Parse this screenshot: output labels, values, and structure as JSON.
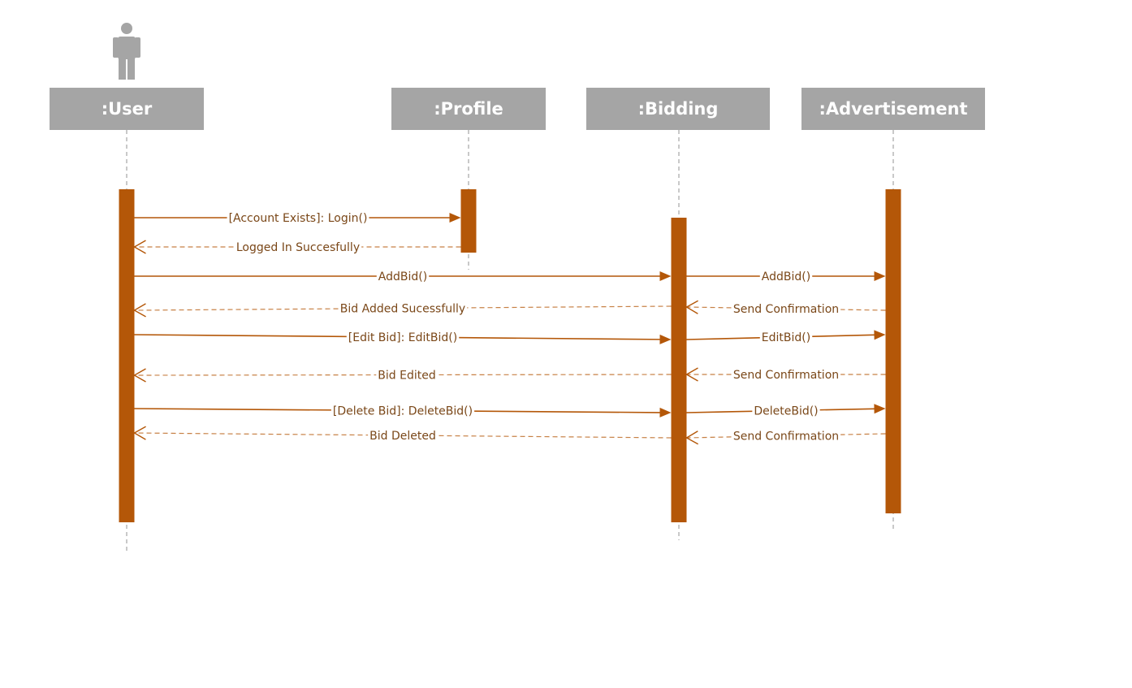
{
  "colors": {
    "header_fill": "#a5a5a5",
    "actor_fill": "#a5a5a5",
    "lifeline": "#a5a5a5",
    "activation": "#b45708",
    "message": "#b45708",
    "label_text": "#7a4718",
    "background": "#ffffff"
  },
  "actor": {
    "icon": "person-icon"
  },
  "objects": [
    {
      "id": "user",
      "label": ":User"
    },
    {
      "id": "profile",
      "label": ":Profile"
    },
    {
      "id": "bidding",
      "label": ":Bidding"
    },
    {
      "id": "advertisement",
      "label": ":Advertisement"
    }
  ],
  "messages": [
    {
      "id": "login",
      "from": "user",
      "to": "profile",
      "type": "sync",
      "label": "[Account Exists]: Login()"
    },
    {
      "id": "logged-in",
      "from": "profile",
      "to": "user",
      "type": "return",
      "label": "Logged In Succesfully"
    },
    {
      "id": "addbid-user",
      "from": "user",
      "to": "bidding",
      "type": "sync",
      "label": "AddBid()"
    },
    {
      "id": "addbid-bidding",
      "from": "bidding",
      "to": "advertisement",
      "type": "sync",
      "label": "AddBid()"
    },
    {
      "id": "confirm-add",
      "from": "advertisement",
      "to": "bidding",
      "type": "return",
      "label": "Send Confirmation"
    },
    {
      "id": "bid-added",
      "from": "bidding",
      "to": "user",
      "type": "return",
      "label": "Bid Added Sucessfully"
    },
    {
      "id": "editbid-user",
      "from": "user",
      "to": "bidding",
      "type": "sync",
      "label": "[Edit Bid]: EditBid()"
    },
    {
      "id": "editbid-bidding",
      "from": "bidding",
      "to": "advertisement",
      "type": "sync",
      "label": "EditBid()"
    },
    {
      "id": "confirm-edit",
      "from": "advertisement",
      "to": "bidding",
      "type": "return",
      "label": "Send Confirmation"
    },
    {
      "id": "bid-edited",
      "from": "bidding",
      "to": "user",
      "type": "return",
      "label": "Bid Edited"
    },
    {
      "id": "deletebid-user",
      "from": "user",
      "to": "bidding",
      "type": "sync",
      "label": "[Delete Bid]: DeleteBid()"
    },
    {
      "id": "deletebid-bidding",
      "from": "bidding",
      "to": "advertisement",
      "type": "sync",
      "label": "DeleteBid()"
    },
    {
      "id": "confirm-delete",
      "from": "advertisement",
      "to": "bidding",
      "type": "return",
      "label": "Send Confirmation"
    },
    {
      "id": "bid-deleted",
      "from": "bidding",
      "to": "user",
      "type": "return",
      "label": "Bid Deleted"
    }
  ]
}
